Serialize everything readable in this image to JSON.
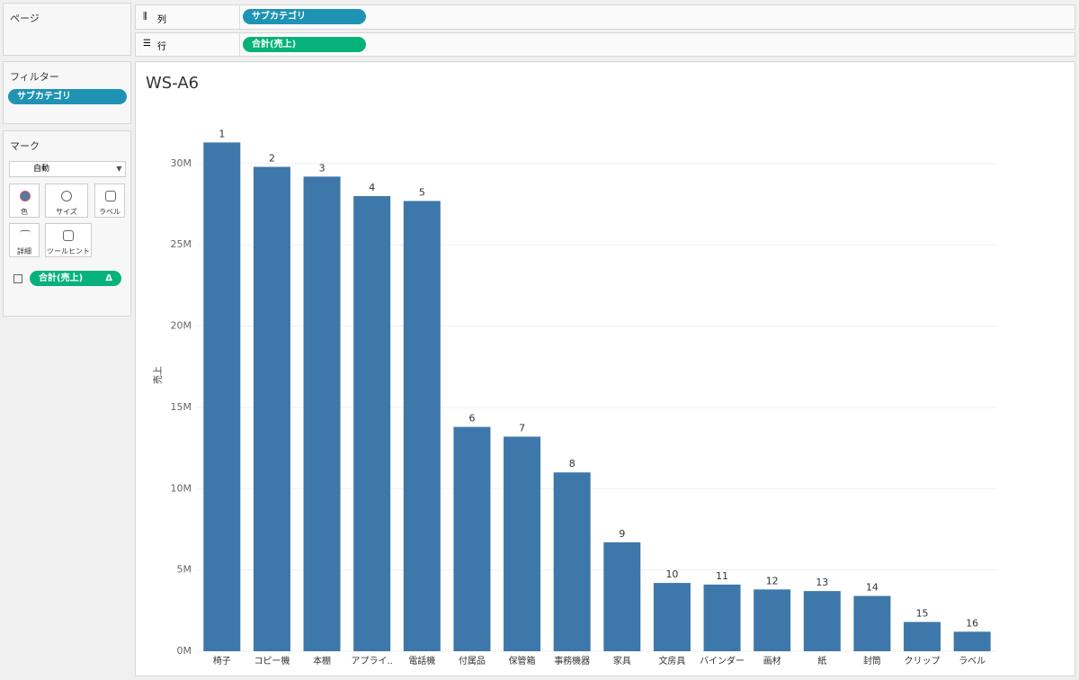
{
  "sidebar": {
    "pages": {
      "title": "ページ"
    },
    "filters": {
      "title": "フィルター",
      "pill": "サブカテゴリ"
    },
    "marks": {
      "title": "マーク",
      "mark_type": "自動",
      "buttons": [
        "色",
        "サイズ",
        "ラベル",
        "詳細",
        "ツールヒント"
      ],
      "pill": "合計(売上)",
      "pill_icon": "Δ"
    }
  },
  "shelves": {
    "columns": {
      "label": "列",
      "pill": "サブカテゴリ"
    },
    "rows": {
      "label": "行",
      "pill": "合計(売上)"
    }
  },
  "chart_data": {
    "type": "bar",
    "title": "WS-A6",
    "y_label": "売上",
    "categories": [
      "椅子",
      "コピー機",
      "本棚",
      "アプライ..",
      "電話機",
      "付属品",
      "保管箱",
      "事務機器",
      "家具",
      "文房具",
      "バインダー",
      "画材",
      "紙",
      "封筒",
      "クリップ",
      "ラベル"
    ],
    "values": [
      31300000,
      29800000,
      29200000,
      28000000,
      27700000,
      13800000,
      13200000,
      11000000,
      6700000,
      4200000,
      4100000,
      3800000,
      3700000,
      3400000,
      1800000,
      1200000
    ],
    "rank_labels": [
      1,
      2,
      3,
      4,
      5,
      6,
      7,
      8,
      9,
      10,
      11,
      12,
      13,
      14,
      15,
      16
    ],
    "color": "#3e77a9",
    "ylim": [
      0,
      34000000
    ],
    "yticks": [
      {
        "value": 0,
        "label": "0M"
      },
      {
        "value": 5000000,
        "label": "5M"
      },
      {
        "value": 10000000,
        "label": "10M"
      },
      {
        "value": 15000000,
        "label": "15M"
      },
      {
        "value": 20000000,
        "label": "20M"
      },
      {
        "value": 25000000,
        "label": "25M"
      },
      {
        "value": 30000000,
        "label": "30M"
      }
    ],
    "grid": true
  }
}
